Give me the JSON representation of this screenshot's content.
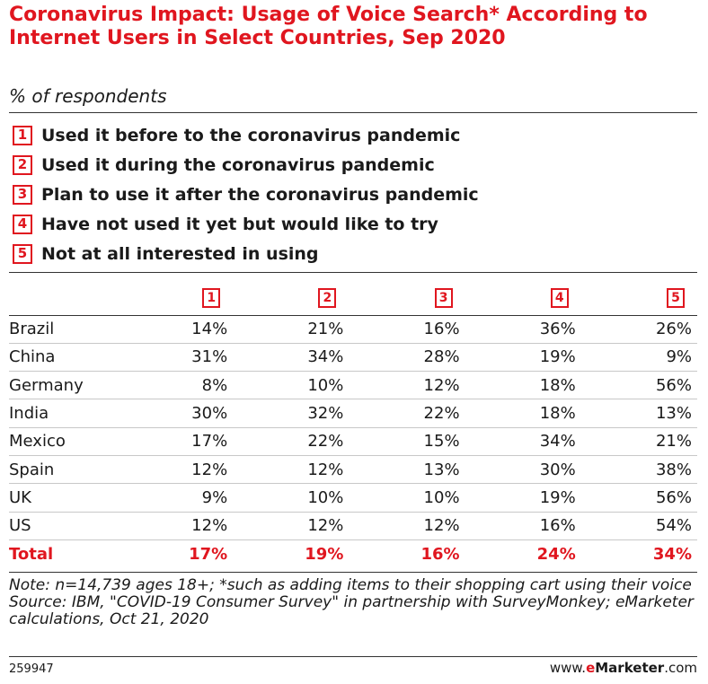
{
  "title": "Coronavirus Impact: Usage of Voice Search* According to Internet Users in Select Countries, Sep 2020",
  "subtitle": "% of respondents",
  "legend": [
    {
      "num": "1",
      "label": "Used it before to the coronavirus pandemic"
    },
    {
      "num": "2",
      "label": "Used it during the coronavirus pandemic"
    },
    {
      "num": "3",
      "label": "Plan to use it after the coronavirus pandemic"
    },
    {
      "num": "4",
      "label": "Have not used it yet but would like to try"
    },
    {
      "num": "5",
      "label": "Not at all interested in using"
    }
  ],
  "chart_data": {
    "type": "table",
    "title": "Coronavirus Impact: Usage of Voice Search* According to Internet Users in Select Countries, Sep 2020",
    "subtitle": "% of respondents",
    "columns": [
      "1",
      "2",
      "3",
      "4",
      "5"
    ],
    "rows": [
      {
        "country": "Brazil",
        "values": [
          "14%",
          "21%",
          "16%",
          "36%",
          "26%"
        ]
      },
      {
        "country": "China",
        "values": [
          "31%",
          "34%",
          "28%",
          "19%",
          "9%"
        ]
      },
      {
        "country": "Germany",
        "values": [
          "8%",
          "10%",
          "12%",
          "18%",
          "56%"
        ]
      },
      {
        "country": "India",
        "values": [
          "30%",
          "32%",
          "22%",
          "18%",
          "13%"
        ]
      },
      {
        "country": "Mexico",
        "values": [
          "17%",
          "22%",
          "15%",
          "34%",
          "21%"
        ]
      },
      {
        "country": "Spain",
        "values": [
          "12%",
          "12%",
          "13%",
          "30%",
          "38%"
        ]
      },
      {
        "country": "UK",
        "values": [
          "9%",
          "10%",
          "10%",
          "19%",
          "56%"
        ]
      },
      {
        "country": "US",
        "values": [
          "12%",
          "12%",
          "12%",
          "16%",
          "54%"
        ]
      }
    ],
    "total": {
      "country": "Total",
      "values": [
        "17%",
        "19%",
        "16%",
        "24%",
        "34%"
      ]
    }
  },
  "notes": {
    "note": "Note: n=14,739 ages 18+; *such as adding items to their shopping cart using their voice",
    "source": "Source: IBM, \"COVID-19 Consumer Survey\" in partnership with SurveyMonkey; eMarketer calculations, Oct 21, 2020"
  },
  "footer": {
    "chart_id": "259947",
    "brand_prefix": "www.",
    "brand_e": "e",
    "brand_rest": "Marketer",
    "brand_suffix": ".com"
  },
  "colors": {
    "accent": "#e0161f",
    "text": "#1a1a1a"
  }
}
